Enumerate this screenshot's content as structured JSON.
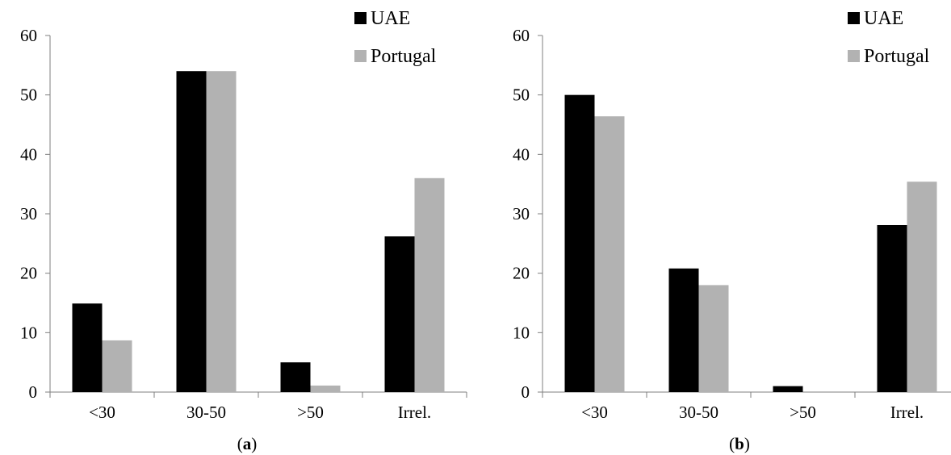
{
  "chart_data": [
    {
      "type": "bar",
      "panel_label": "a",
      "categories": [
        "<30",
        "30-50",
        ">50",
        "Irrel."
      ],
      "series": [
        {
          "name": "UAE",
          "values": [
            14.9,
            54.0,
            5.0,
            26.2
          ],
          "color": "#000000"
        },
        {
          "name": "Portugal",
          "values": [
            8.7,
            54.0,
            1.1,
            36.0
          ],
          "color": "#b2b2b2"
        }
      ],
      "ylim": [
        0,
        60
      ],
      "yticks": [
        0,
        10,
        20,
        30,
        40,
        50,
        60
      ],
      "grid": false,
      "legend": "top-right"
    },
    {
      "type": "bar",
      "panel_label": "b",
      "categories": [
        "<30",
        "30-50",
        ">50",
        "Irrel."
      ],
      "series": [
        {
          "name": "UAE",
          "values": [
            50.0,
            20.8,
            1.0,
            28.1
          ],
          "color": "#000000"
        },
        {
          "name": "Portugal",
          "values": [
            46.4,
            18.0,
            0,
            35.4
          ],
          "color": "#b2b2b2"
        }
      ],
      "ylim": [
        0,
        60
      ],
      "yticks": [
        0,
        10,
        20,
        30,
        40,
        50,
        60
      ],
      "grid": false,
      "legend": "top-right"
    }
  ]
}
